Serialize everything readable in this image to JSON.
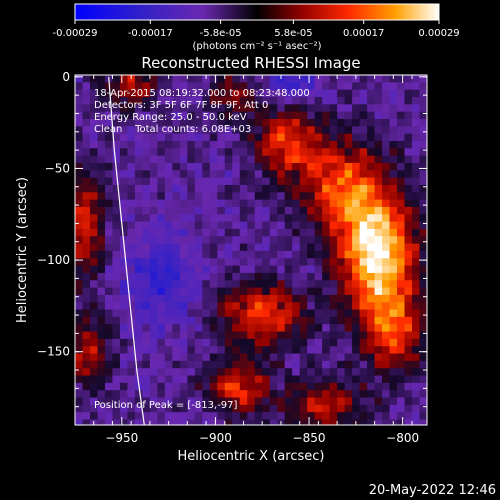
{
  "chart_data": {
    "type": "heatmap",
    "title": "Reconstructed RHESSI Image",
    "xlabel": "Heliocentric X (arcsec)",
    "ylabel": "Heliocentric Y (arcsec)",
    "xlim": [
      -975,
      -787
    ],
    "ylim": [
      -190,
      1
    ],
    "xticks": [
      -950,
      -900,
      -850,
      -800
    ],
    "yticks": [
      0,
      -50,
      -100,
      -150
    ],
    "colorbar": {
      "ticks": [
        "-0.00029",
        "-0.00017",
        "-5.8e-05",
        "5.8e-05",
        "0.00017",
        "0.00029"
      ],
      "tick_values": [
        -0.00029,
        -0.00017,
        -5.8e-05,
        5.8e-05,
        0.00017,
        0.00029
      ],
      "range": [
        -0.00029,
        0.00029
      ],
      "unit_label": "(photons cm⁻² s⁻¹ asec⁻²)"
    },
    "annotations": [
      "18-Apr-2015 08:19:32.000 to 08:23:48.000",
      "Detectors: 3F 5F 6F 7F 8F 9F, Att 0",
      "Energy Range: 25.0 - 50.0 keV",
      "Clean    Total counts: 6.08E+03",
      "Position of Peak = [-813,-97]"
    ],
    "peak": {
      "x": -813,
      "y": -97
    },
    "limb_curve": [
      [
        -957,
        0
      ],
      [
        -954,
        -40
      ],
      [
        -950,
        -80
      ],
      [
        -946,
        -120
      ],
      [
        -942,
        -160
      ],
      [
        -938,
        -190
      ]
    ],
    "sources": [
      {
        "x": -813,
        "y": -97,
        "amp": 1.0,
        "sx": 14,
        "sy": 22
      },
      {
        "x": -832,
        "y": -60,
        "amp": 0.62,
        "sx": 16,
        "sy": 18
      },
      {
        "x": -862,
        "y": -35,
        "amp": 0.55,
        "sx": 12,
        "sy": 14
      },
      {
        "x": -875,
        "y": -130,
        "amp": 0.6,
        "sx": 16,
        "sy": 12
      },
      {
        "x": -888,
        "y": -170,
        "amp": 0.55,
        "sx": 12,
        "sy": 10
      },
      {
        "x": -805,
        "y": -140,
        "amp": 0.55,
        "sx": 12,
        "sy": 16
      },
      {
        "x": -843,
        "y": -180,
        "amp": 0.45,
        "sx": 14,
        "sy": 10
      },
      {
        "x": -970,
        "y": -80,
        "amp": 0.5,
        "sx": 8,
        "sy": 20
      },
      {
        "x": -968,
        "y": -150,
        "amp": 0.45,
        "sx": 8,
        "sy": 14
      },
      {
        "x": -945,
        "y": -5,
        "amp": 0.45,
        "sx": 10,
        "sy": 8
      },
      {
        "x": -890,
        "y": -10,
        "amp": 0.35,
        "sx": 10,
        "sy": 8
      },
      {
        "x": -930,
        "y": -110,
        "amp": -0.3,
        "sx": 14,
        "sy": 20
      },
      {
        "x": -860,
        "y": -5,
        "amp": -0.3,
        "sx": 12,
        "sy": 8
      }
    ]
  },
  "footer": {
    "date": "20-May-2022 12:46"
  }
}
